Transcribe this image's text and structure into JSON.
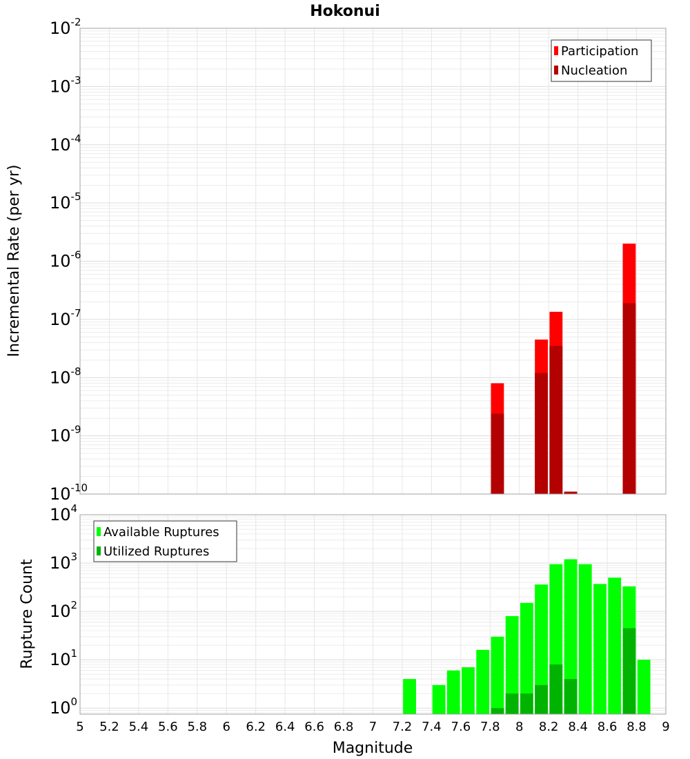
{
  "chart_data": [
    {
      "type": "bar",
      "title": "Hokonui",
      "xlabel": "",
      "ylabel": "Incremental Rate (per yr)",
      "y_scale": "log",
      "ylim": [
        1e-10,
        0.01
      ],
      "xlim": [
        5,
        9
      ],
      "grid": true,
      "legend_position": "top-right",
      "y_ticks": [
        {
          "base": "10",
          "exp": "-2"
        },
        {
          "base": "10",
          "exp": "-3"
        },
        {
          "base": "10",
          "exp": "-4"
        },
        {
          "base": "10",
          "exp": "-5"
        },
        {
          "base": "10",
          "exp": "-6"
        },
        {
          "base": "10",
          "exp": "-7"
        },
        {
          "base": "10",
          "exp": "-8"
        },
        {
          "base": "10",
          "exp": "-9"
        },
        {
          "base": "10",
          "exp": "-10"
        }
      ],
      "series": [
        {
          "name": "Participation",
          "color": "#ff0000",
          "x": [
            7.85,
            8.15,
            8.25,
            8.35,
            8.75
          ],
          "values": [
            8e-09,
            4.5e-08,
            1.35e-07,
            1.1e-10,
            2e-06
          ]
        },
        {
          "name": "Nucleation",
          "color": "#b30000",
          "x": [
            7.85,
            8.15,
            8.25,
            8.35,
            8.75
          ],
          "values": [
            2.4e-09,
            1.2e-08,
            3.5e-08,
            1.1e-10,
            1.9e-07
          ]
        }
      ]
    },
    {
      "type": "bar",
      "xlabel": "Magnitude",
      "ylabel": "Rupture Count",
      "y_scale": "log",
      "ylim": [
        0.75,
        10000
      ],
      "xlim": [
        5,
        9
      ],
      "grid": true,
      "legend_position": "top-left",
      "x_ticks": [
        "5",
        "5.2",
        "5.4",
        "5.6",
        "5.8",
        "6",
        "6.2",
        "6.4",
        "6.6",
        "6.8",
        "7",
        "7.2",
        "7.4",
        "7.6",
        "7.8",
        "8",
        "8.2",
        "8.4",
        "8.6",
        "8.8",
        "9"
      ],
      "y_ticks": [
        {
          "base": "10",
          "exp": "4"
        },
        {
          "base": "10",
          "exp": "3"
        },
        {
          "base": "10",
          "exp": "2"
        },
        {
          "base": "10",
          "exp": "1"
        },
        {
          "base": "10",
          "exp": "0"
        }
      ],
      "series": [
        {
          "name": "Available Ruptures",
          "color": "#00ff00",
          "x": [
            7.25,
            7.45,
            7.55,
            7.65,
            7.75,
            7.85,
            7.95,
            8.05,
            8.15,
            8.25,
            8.35,
            8.45,
            8.55,
            8.65,
            8.75,
            8.85
          ],
          "values": [
            4,
            3,
            6,
            7,
            16,
            30,
            80,
            150,
            360,
            950,
            1200,
            950,
            370,
            500,
            330,
            10
          ]
        },
        {
          "name": "Utilized Ruptures",
          "color": "#00b300",
          "x": [
            7.85,
            7.95,
            8.05,
            8.15,
            8.25,
            8.35,
            8.75
          ],
          "values": [
            1,
            2,
            2,
            3,
            8,
            4,
            45
          ]
        }
      ]
    }
  ]
}
